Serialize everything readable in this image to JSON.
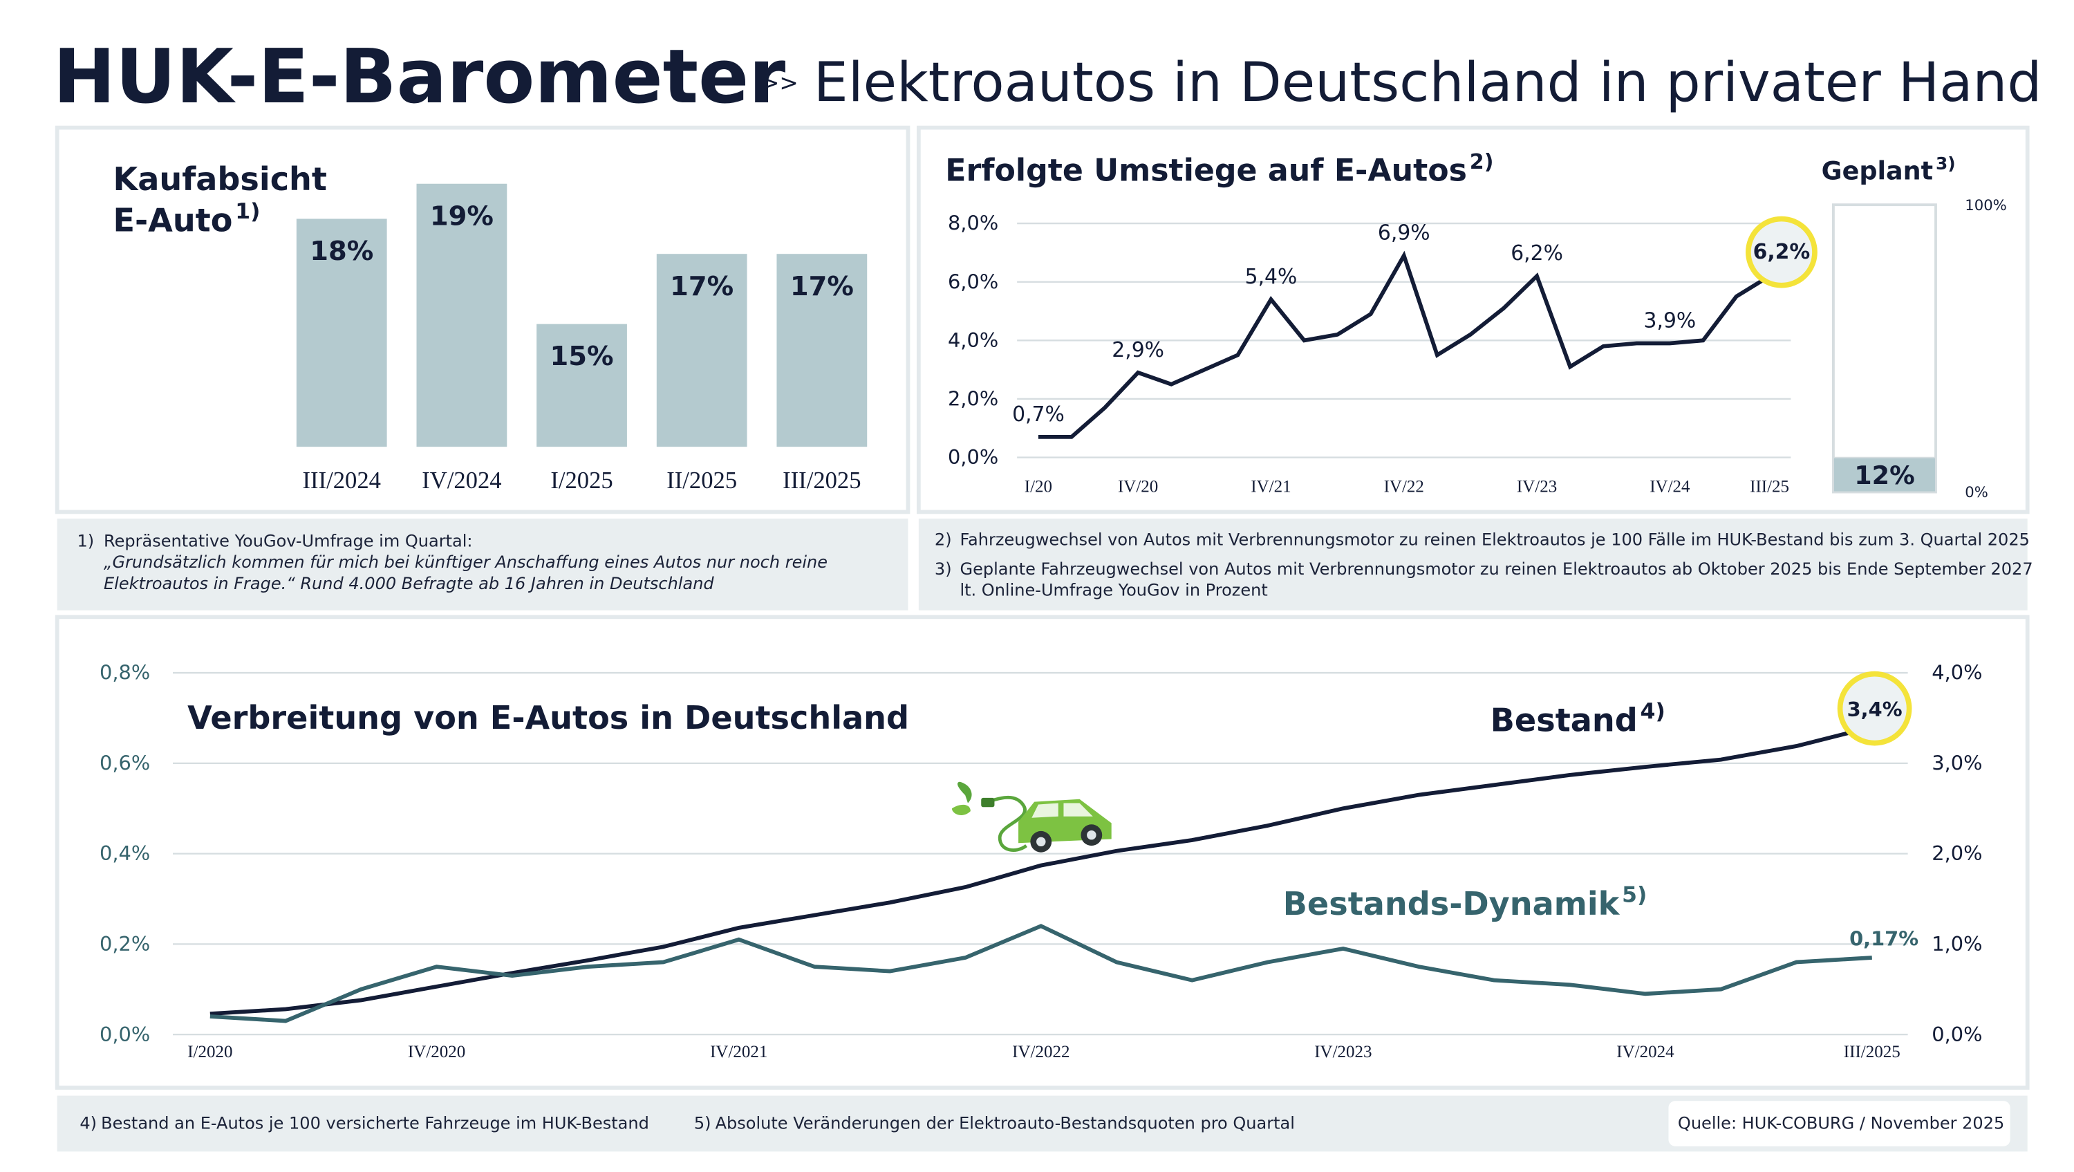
{
  "header": {
    "title": "HUK-E-Barometer",
    "separator": ">>",
    "subtitle": "Elektroautos in Deutschland in privater Hand"
  },
  "chart_data": [
    {
      "type": "bar",
      "title_lines": [
        "Kaufabsicht",
        "E-Auto"
      ],
      "note": "1)",
      "categories": [
        "III/2024",
        "IV/2024",
        "I/2025",
        "II/2025",
        "III/2025"
      ],
      "values": [
        18,
        19,
        15,
        17,
        17
      ],
      "value_labels": [
        "18%",
        "19%",
        "15%",
        "17%",
        "17%"
      ],
      "color": "#b4cacf",
      "ylim": [
        11.5,
        19.5
      ]
    },
    {
      "type": "line",
      "title": "Erfolgte Umstiege auf E-Autos",
      "note": "2)",
      "categories": [
        "I/20",
        null,
        null,
        "IV/20",
        null,
        null,
        null,
        "IV/21",
        null,
        null,
        null,
        "IV/22",
        null,
        null,
        null,
        "IV/23",
        null,
        null,
        null,
        "IV/24",
        null,
        null,
        "III/25"
      ],
      "values": [
        0.7,
        0.7,
        1.7,
        2.9,
        2.5,
        3.0,
        3.5,
        5.4,
        4.0,
        4.2,
        4.9,
        6.9,
        3.5,
        4.2,
        5.1,
        6.2,
        3.1,
        3.8,
        3.9,
        3.9,
        4.0,
        5.5,
        6.2
      ],
      "value_labels": [
        "0,7%",
        null,
        null,
        "2,9%",
        null,
        null,
        null,
        "5,4%",
        null,
        null,
        null,
        "6,9%",
        null,
        null,
        null,
        "6,2%",
        null,
        null,
        null,
        "3,9%",
        null,
        null,
        "6,2%"
      ],
      "color": "#131c36",
      "ylim": [
        0,
        8
      ],
      "yticks": [
        {
          "value": 0,
          "label": "0,0%"
        },
        {
          "value": 2,
          "label": "2,0%"
        },
        {
          "value": 4,
          "label": "4,0%"
        },
        {
          "value": 6,
          "label": "6,0%"
        },
        {
          "value": 8,
          "label": "8,0%"
        }
      ],
      "grid": true
    },
    {
      "type": "bar",
      "title": "Geplant",
      "note": "3)",
      "values": [
        12
      ],
      "value_labels": [
        "12%"
      ],
      "color": "#b4cacf",
      "ylim": [
        0,
        100
      ],
      "yticks": [
        {
          "value": 0,
          "label": "0%"
        },
        {
          "value": 100,
          "label": "100%"
        }
      ]
    },
    {
      "type": "line",
      "title": "Verbreitung von E-Autos in Deutschland",
      "categories": [
        "I/2020",
        null,
        null,
        "IV/2020",
        null,
        null,
        null,
        "IV/2021",
        null,
        null,
        null,
        "IV/2022",
        null,
        null,
        null,
        "IV/2023",
        null,
        null,
        null,
        "IV/2024",
        null,
        null,
        "III/2025"
      ],
      "series": [
        {
          "name": "Bestand",
          "name_note": "4)",
          "color": "#131c36",
          "axis": "y2",
          "values": [
            0.23,
            0.28,
            0.38,
            0.53,
            0.68,
            0.82,
            0.97,
            1.18,
            1.32,
            1.46,
            1.63,
            1.87,
            2.03,
            2.15,
            2.31,
            2.5,
            2.65,
            2.76,
            2.87,
            2.96,
            3.04,
            3.19,
            3.4
          ],
          "value_labels": [
            null,
            null,
            null,
            null,
            null,
            null,
            null,
            null,
            null,
            null,
            null,
            null,
            null,
            null,
            null,
            null,
            null,
            null,
            null,
            null,
            null,
            null,
            "3,4%"
          ]
        },
        {
          "name": "Bestands-Dynamik",
          "name_note": "5)",
          "color": "#36646d",
          "values": [
            0.04,
            0.03,
            0.1,
            0.15,
            0.13,
            0.15,
            0.16,
            0.21,
            0.15,
            0.14,
            0.17,
            0.24,
            0.16,
            0.12,
            0.16,
            0.19,
            0.15,
            0.12,
            0.11,
            0.09,
            0.1,
            0.16,
            0.17
          ],
          "value_labels": [
            null,
            null,
            null,
            null,
            null,
            null,
            null,
            null,
            null,
            null,
            null,
            null,
            null,
            null,
            null,
            null,
            null,
            null,
            null,
            null,
            null,
            null,
            "0,17%"
          ]
        }
      ],
      "ylim": [
        0,
        0.8
      ],
      "yticks": [
        {
          "value": 0,
          "label": "0,0%"
        },
        {
          "value": 0.2,
          "label": "0,2%"
        },
        {
          "value": 0.4,
          "label": "0,4%"
        },
        {
          "value": 0.6,
          "label": "0,6%"
        },
        {
          "value": 0.8,
          "label": "0,8%"
        }
      ],
      "y2lim": [
        0,
        4
      ],
      "y2ticks": [
        {
          "value": 0,
          "label": "0,0%"
        },
        {
          "value": 1,
          "label": "1,0%"
        },
        {
          "value": 2,
          "label": "2,0%"
        },
        {
          "value": 3,
          "label": "3,0%"
        },
        {
          "value": 4,
          "label": "4,0%"
        }
      ],
      "grid": true
    }
  ],
  "footnotes": [
    {
      "marker": "1)",
      "lines": [
        "Repräsentative YouGov-Umfrage im Quartal:",
        "„Grundsätzlich kommen für mich bei künftiger Anschaffung eines Autos nur noch reine",
        "Elektroautos in Frage.“ Rund 4.000 Befragte ab 16 Jahren in Deutschland"
      ]
    },
    {
      "marker": "2)",
      "lines": [
        "Fahrzeugwechsel von Autos mit Verbrennungsmotor zu reinen Elektroautos je 100 Fälle im HUK-Bestand bis zum 3. Quartal 2025"
      ]
    },
    {
      "marker": "3)",
      "lines": [
        "Geplante Fahrzeugwechsel von Autos mit Verbrennungsmotor zu reinen Elektroautos ab Oktober 2025 bis Ende September 2027",
        "lt. Online-Umfrage YouGov in Prozent"
      ]
    },
    {
      "marker": "4)",
      "lines": [
        "Bestand an E-Autos je 100 versicherte Fahrzeuge im HUK-Bestand"
      ]
    },
    {
      "marker": "5)",
      "lines": [
        "Absolute Veränderungen der Elektroauto-Bestandsquoten pro Quartal"
      ]
    }
  ],
  "source": "Quelle: HUK-COBURG / November  2025"
}
